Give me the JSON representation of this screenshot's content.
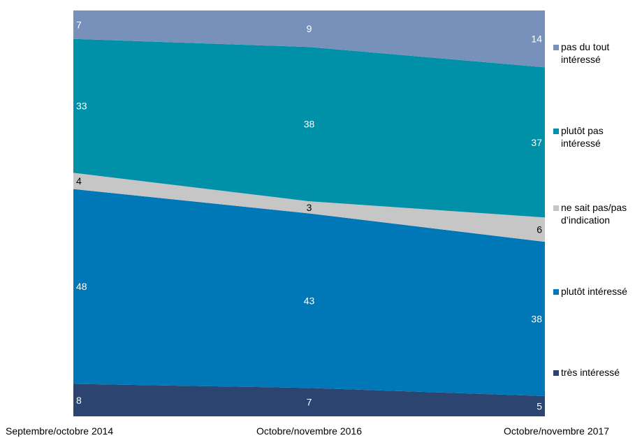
{
  "chart_data": {
    "type": "area",
    "stacked": true,
    "normalized": true,
    "categories": [
      "Septembre/octobre 2014",
      "Octobre/novembre 2016",
      "Octobre/novembre 2017"
    ],
    "series": [
      {
        "name": "très intéressé",
        "color": "#2b4470",
        "label_color": "#ffffff",
        "values": [
          8,
          7,
          5
        ]
      },
      {
        "name": "plutôt intéressé",
        "color": "#0077b6",
        "label_color": "#ffffff",
        "values": [
          48,
          43,
          38
        ]
      },
      {
        "name": "ne sait pas/pas\nd’indication",
        "color": "#c6c6c6",
        "label_color": "#000000",
        "values": [
          4,
          3,
          6
        ]
      },
      {
        "name": "plutôt pas\nintéressé",
        "color": "#0090a8",
        "label_color": "#ffffff",
        "values": [
          33,
          38,
          37
        ]
      },
      {
        "name": "pas du tout\nintéressé",
        "color": "#7891bb",
        "label_color": "#ffffff",
        "values": [
          7,
          9,
          14
        ]
      }
    ],
    "legend_position": "right",
    "grid": false
  }
}
